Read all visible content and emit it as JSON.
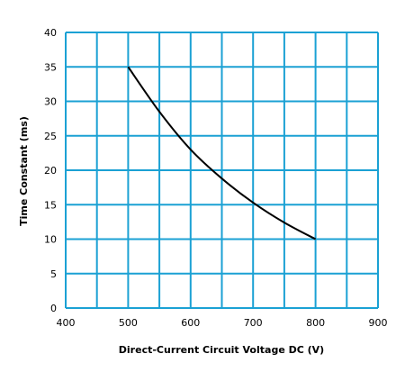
{
  "chart_data": {
    "type": "line",
    "title": "",
    "xlabel": "Direct-Current Circuit Voltage DC (V)",
    "ylabel": "Time Constant (ms)",
    "xlim": [
      400,
      900
    ],
    "ylim": [
      0,
      40
    ],
    "x_ticks": [
      "400",
      "500",
      "600",
      "700",
      "800",
      "900"
    ],
    "y_ticks": [
      "0",
      "5",
      "10",
      "15",
      "20",
      "25",
      "30",
      "35",
      "40"
    ],
    "grid": true,
    "grid_color": "#1ba1d4",
    "line_color": "#000000",
    "series": [
      {
        "x": [
          500,
          550,
          600,
          650,
          700,
          750,
          800
        ],
        "values": [
          35,
          28.5,
          23,
          18.8,
          15.3,
          12.4,
          10
        ]
      }
    ]
  }
}
